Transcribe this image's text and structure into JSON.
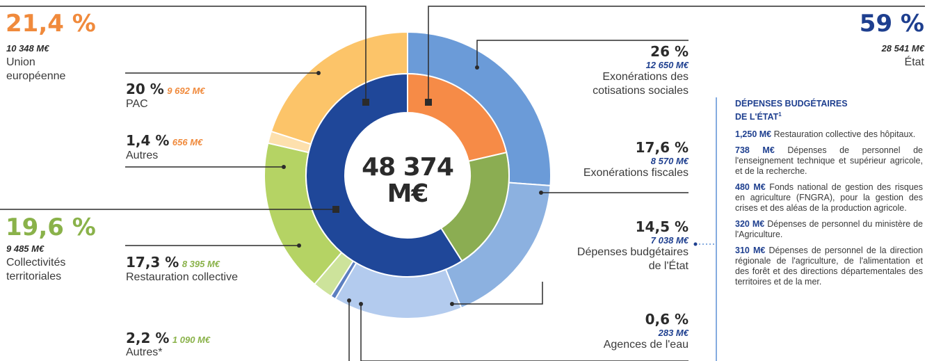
{
  "colors": {
    "orange_text": "#f08a3c",
    "green_text": "#8ab24a",
    "blue_text": "#1e3f8f",
    "line": "#2b2b2b",
    "panel_line": "#5b8fd6"
  },
  "center": {
    "line1": "48 374",
    "line2": "M€"
  },
  "groups": {
    "ue": {
      "pct": "21,4 %",
      "amount": "10 348 M€",
      "label1": "Union",
      "label2": "européenne"
    },
    "ct": {
      "pct": "19,6 %",
      "amount": "9 485 M€",
      "label1": "Collectivités",
      "label2": "territoriales"
    },
    "etat": {
      "pct": "59 %",
      "amount": "28 541 M€",
      "label": "État"
    }
  },
  "items": {
    "pac": {
      "pct": "20 %",
      "amount": "9 692 M€",
      "label": "PAC"
    },
    "autres_ue": {
      "pct": "1,4 %",
      "amount": "656 M€",
      "label": "Autres"
    },
    "restau": {
      "pct": "17,3 %",
      "amount": "8 395 M€",
      "label": "Restauration collective"
    },
    "autres_ct": {
      "pct": "2,2 %",
      "amount": "1 090 M€",
      "label": "Autres*"
    },
    "exo_cot": {
      "pct": "26 %",
      "amount": "12 650 M€",
      "label1": "Exonérations des",
      "label2": "cotisations sociales"
    },
    "exo_fisc": {
      "pct": "17,6 %",
      "amount": "8 570 M€",
      "label": "Exonérations fiscales"
    },
    "dep_budg": {
      "pct": "14,5 %",
      "amount": "7 038 M€",
      "label1": "Dépenses budgétaires",
      "label2": "de l'État"
    },
    "agences": {
      "pct": "0,6 %",
      "amount": "283 M€",
      "label": "Agences de l'eau"
    }
  },
  "panel": {
    "title1": "DÉPENSES BUDGÉTAIRES",
    "title2": "DE L'ÉTAT",
    "title_sup": "1",
    "entries": [
      {
        "amount": "1,250 M€",
        "text": " Restauration collective des hôpitaux."
      },
      {
        "amount": "738 M€",
        "text": " Dépenses de personnel de l'enseignement technique et supérieur agricole, et de la recherche."
      },
      {
        "amount": "480 M€",
        "text": " Fonds national de gestion des risques en agriculture (FNGRA), pour la gestion des crises et des aléas de la production agricole."
      },
      {
        "amount": "320 M€",
        "text": " Dépenses de personnel du ministère de l'Agriculture."
      },
      {
        "amount": "310 M€",
        "text": " Dépenses de personnel de la direction régionale de l'agriculture, de l'alimentation et des forêt et des directions départementales des territoires et de la mer."
      }
    ]
  },
  "chart_data": {
    "type": "pie",
    "variant": "nested-donut",
    "total": 48374,
    "unit": "M€",
    "inner": [
      {
        "name": "Union européenne",
        "value": 10348,
        "pct": 21.4,
        "color": "#f68b47"
      },
      {
        "name": "Collectivités territoriales",
        "value": 9485,
        "pct": 19.6,
        "color": "#8bad52"
      },
      {
        "name": "État",
        "value": 28541,
        "pct": 59,
        "color": "#1f4799"
      }
    ],
    "outer": [
      {
        "name": "Exonérations des cotisations sociales",
        "value": 12650,
        "pct": 26,
        "color": "#6b9bd8"
      },
      {
        "name": "Exonérations fiscales",
        "value": 8570,
        "pct": 17.6,
        "color": "#8cb1e0"
      },
      {
        "name": "Dépenses budgétaires de l'État",
        "value": 7038,
        "pct": 14.5,
        "color": "#b3cbee"
      },
      {
        "name": "Agences de l'eau",
        "value": 283,
        "pct": 0.6,
        "color": "#5c7fc0"
      },
      {
        "name": "Autres*",
        "value": 1090,
        "pct": 2.2,
        "color": "#cde39b"
      },
      {
        "name": "Restauration collective",
        "value": 8395,
        "pct": 17.3,
        "color": "#b5d364"
      },
      {
        "name": "Autres",
        "value": 656,
        "pct": 1.4,
        "color": "#fde0ad"
      },
      {
        "name": "PAC",
        "value": 9692,
        "pct": 20,
        "color": "#fcc469"
      }
    ]
  }
}
